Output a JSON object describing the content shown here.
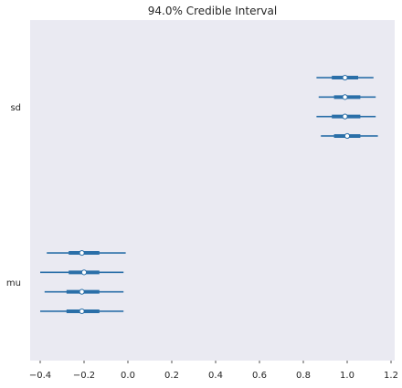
{
  "chart_data": {
    "type": "forest",
    "title": "94.0% Credible Interval",
    "xlabel": "",
    "ylabel": "",
    "xlim": [
      -0.5,
      1.2
    ],
    "xticks": [
      -0.4,
      -0.2,
      0.0,
      0.2,
      0.4,
      0.6,
      0.8,
      1.0,
      1.2
    ],
    "xtick_labels": [
      "−0.4",
      "−0.2",
      "0.0",
      "0.2",
      "0.4",
      "0.6",
      "0.8",
      "1.0",
      "1.2"
    ],
    "grid": false,
    "colors": {
      "background": "#eaeaf2",
      "line": "#2a6fa8",
      "marker_face": "#ffffff",
      "text": "#262626"
    },
    "parameters": [
      {
        "name": "sd",
        "chains": [
          {
            "hdi94": [
              0.86,
              1.12
            ],
            "iqr": [
              0.93,
              1.05
            ],
            "median": 0.99
          },
          {
            "hdi94": [
              0.87,
              1.13
            ],
            "iqr": [
              0.94,
              1.06
            ],
            "median": 0.99
          },
          {
            "hdi94": [
              0.86,
              1.13
            ],
            "iqr": [
              0.93,
              1.06
            ],
            "median": 0.99
          },
          {
            "hdi94": [
              0.88,
              1.14
            ],
            "iqr": [
              0.94,
              1.06
            ],
            "median": 1.0
          }
        ]
      },
      {
        "name": "mu",
        "chains": [
          {
            "hdi94": [
              -0.37,
              -0.01
            ],
            "iqr": [
              -0.27,
              -0.13
            ],
            "median": -0.21
          },
          {
            "hdi94": [
              -0.4,
              -0.02
            ],
            "iqr": [
              -0.27,
              -0.13
            ],
            "median": -0.2
          },
          {
            "hdi94": [
              -0.38,
              -0.02
            ],
            "iqr": [
              -0.28,
              -0.13
            ],
            "median": -0.21
          },
          {
            "hdi94": [
              -0.4,
              -0.02
            ],
            "iqr": [
              -0.28,
              -0.13
            ],
            "median": -0.21
          }
        ]
      }
    ]
  }
}
